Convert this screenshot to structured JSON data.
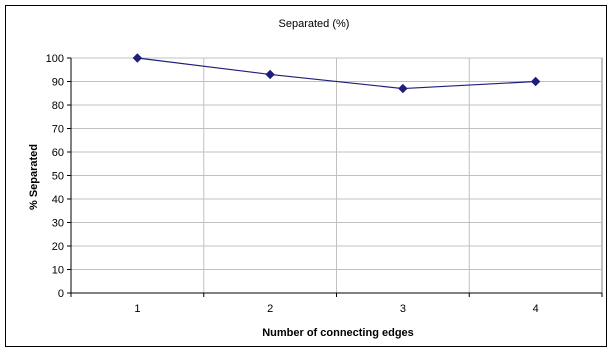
{
  "chart_data": {
    "type": "line",
    "title": "Separated (%)",
    "xlabel": "Number of connecting edges",
    "ylabel": "% Separated",
    "categories": [
      "1",
      "2",
      "3",
      "4"
    ],
    "series": [
      {
        "values": [
          100,
          93,
          87,
          90
        ],
        "color": "#1f1f7a",
        "marker": "diamond"
      }
    ],
    "ylim": [
      0,
      100
    ],
    "yticks": [
      "0",
      "10",
      "20",
      "30",
      "40",
      "50",
      "60",
      "70",
      "80",
      "90",
      "100"
    ],
    "grid": true,
    "legend": "none"
  }
}
